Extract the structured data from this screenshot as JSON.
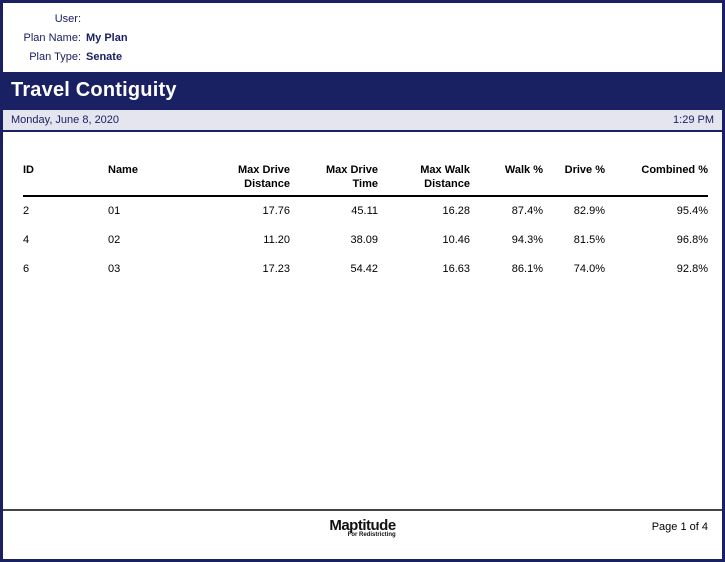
{
  "meta": {
    "rows": [
      {
        "label": "User:",
        "value": ""
      },
      {
        "label": "Plan Name:",
        "value": "My Plan"
      },
      {
        "label": "Plan Type:",
        "value": "Senate"
      }
    ]
  },
  "banner": {
    "title": "Travel Contiguity"
  },
  "datebar": {
    "date": "Monday, June 8, 2020",
    "time": "1:29 PM"
  },
  "table": {
    "columns": [
      {
        "id": "id",
        "header_lines": [
          "ID"
        ],
        "align": "left"
      },
      {
        "id": "name",
        "header_lines": [
          "Name"
        ],
        "align": "left"
      },
      {
        "id": "max-drive-distance",
        "header_lines": [
          "Max Drive",
          "Distance"
        ],
        "align": "right"
      },
      {
        "id": "max-drive-time",
        "header_lines": [
          "Max Drive",
          "Time"
        ],
        "align": "right"
      },
      {
        "id": "max-walk-distance",
        "header_lines": [
          "Max Walk",
          "Distance"
        ],
        "align": "right"
      },
      {
        "id": "walk-pct",
        "header_lines": [
          "Walk %"
        ],
        "align": "right"
      },
      {
        "id": "drive-pct",
        "header_lines": [
          "Drive %"
        ],
        "align": "right"
      },
      {
        "id": "combined-pct",
        "header_lines": [
          "Combined %"
        ],
        "align": "right"
      }
    ],
    "rows": [
      [
        "2",
        "01",
        "17.76",
        "45.11",
        "16.28",
        "87.4%",
        "82.9%",
        "95.4%"
      ],
      [
        "4",
        "02",
        "11.20",
        "38.09",
        "10.46",
        "94.3%",
        "81.5%",
        "96.8%"
      ],
      [
        "6",
        "03",
        "17.23",
        "54.42",
        "16.63",
        "86.1%",
        "74.0%",
        "92.8%"
      ]
    ]
  },
  "footer": {
    "logo_text": "Maptitude",
    "logo_subtext": "For Redistricting",
    "page_label": "Page 1 of 4"
  },
  "colors": {
    "navy": "#1a2163",
    "datebar_bg": "#e5e5f0",
    "footer_rule": "#444444"
  }
}
